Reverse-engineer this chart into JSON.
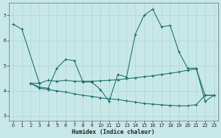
{
  "xlabel": "Humidex (Indice chaleur)",
  "xlim": [
    -0.5,
    23.5
  ],
  "ylim": [
    2.8,
    7.5
  ],
  "xticks": [
    0,
    1,
    2,
    3,
    4,
    5,
    6,
    7,
    8,
    9,
    10,
    11,
    12,
    13,
    14,
    15,
    16,
    17,
    18,
    19,
    20,
    21,
    22,
    23
  ],
  "yticks": [
    3,
    4,
    5,
    6,
    7
  ],
  "bg_color": "#c8e8e8",
  "grid_color": "#aad4d4",
  "line_color": "#1a6b6b",
  "line1_x": [
    0,
    1,
    3
  ],
  "line1_y": [
    6.65,
    6.45,
    4.3
  ],
  "line2_x": [
    2,
    3,
    4,
    5,
    6,
    7,
    8,
    9,
    10,
    11,
    12,
    13,
    14,
    15,
    16,
    17,
    18,
    19,
    20,
    21,
    22,
    23
  ],
  "line2_y": [
    4.3,
    4.15,
    4.1,
    4.9,
    5.25,
    5.2,
    4.35,
    4.35,
    4.05,
    3.58,
    4.65,
    4.55,
    6.25,
    7.0,
    7.25,
    6.55,
    6.6,
    5.55,
    4.9,
    4.9,
    3.58,
    3.82
  ],
  "line3_x": [
    2,
    3,
    4,
    5,
    6,
    7,
    8,
    9,
    10,
    11,
    12,
    13,
    14,
    15,
    16,
    17,
    18,
    19,
    20,
    21,
    22,
    23
  ],
  "line3_y": [
    4.3,
    4.1,
    4.05,
    4.0,
    3.95,
    3.88,
    3.82,
    3.78,
    3.72,
    3.68,
    3.65,
    3.6,
    3.55,
    3.5,
    3.47,
    3.44,
    3.42,
    3.4,
    3.4,
    3.45,
    3.82,
    3.82
  ],
  "line4_x": [
    2,
    3,
    4,
    5,
    6,
    7,
    8,
    9,
    10,
    11,
    12,
    13,
    14,
    15,
    16,
    17,
    18,
    19,
    20,
    21,
    22,
    23
  ],
  "line4_y": [
    4.3,
    4.3,
    4.42,
    4.38,
    4.42,
    4.38,
    4.38,
    4.38,
    4.4,
    4.42,
    4.44,
    4.48,
    4.52,
    4.56,
    4.6,
    4.65,
    4.7,
    4.75,
    4.82,
    4.88,
    3.82,
    3.82
  ]
}
